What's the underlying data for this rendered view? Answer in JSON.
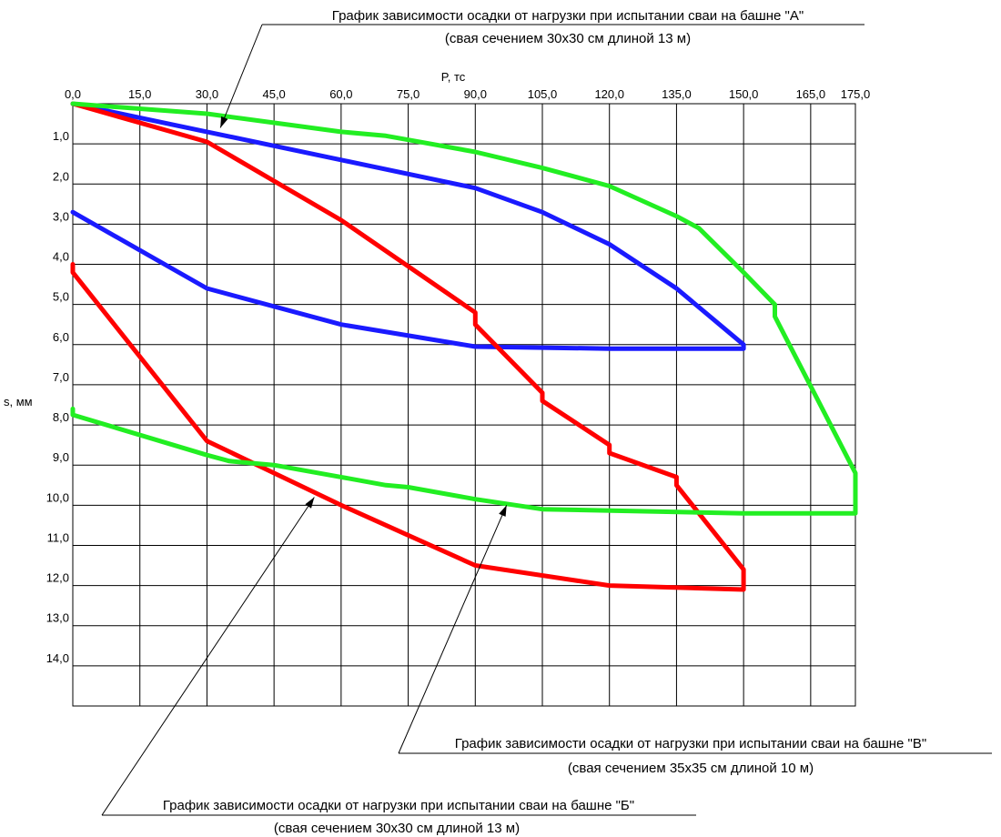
{
  "chart_data": {
    "type": "line",
    "xlabel": "P, тс",
    "ylabel": "s, мм",
    "xlim": [
      0,
      175
    ],
    "ylim": [
      0,
      15
    ],
    "y_inverted": true,
    "grid": true,
    "x_ticks": [
      "0,0",
      "15,0",
      "30,0",
      "45,0",
      "60,0",
      "75,0",
      "90,0",
      "105,0",
      "120,0",
      "135,0",
      "150,0",
      "165,0",
      "175,0"
    ],
    "x_tick_values": [
      0,
      15,
      30,
      45,
      60,
      75,
      90,
      105,
      120,
      135,
      150,
      165,
      175
    ],
    "y_ticks": [
      "1,0",
      "2,0",
      "3,0",
      "4,0",
      "5,0",
      "6,0",
      "7,0",
      "8,0",
      "9,0",
      "10,0",
      "11,0",
      "12,0",
      "13,0",
      "14,0"
    ],
    "y_tick_values": [
      1,
      2,
      3,
      4,
      5,
      6,
      7,
      8,
      9,
      10,
      11,
      12,
      13,
      14
    ],
    "series": [
      {
        "color": "#1a1aff",
        "points": [
          [
            0,
            0
          ],
          [
            30,
            0.7
          ],
          [
            60,
            1.4
          ],
          [
            90,
            2.1
          ],
          [
            105,
            2.7
          ],
          [
            120,
            3.5
          ],
          [
            135,
            4.6
          ],
          [
            150,
            6.0
          ],
          [
            150,
            6.1
          ],
          [
            120,
            6.1
          ],
          [
            90,
            6.05
          ],
          [
            60,
            5.5
          ],
          [
            30,
            4.6
          ],
          [
            0,
            2.7
          ]
        ]
      },
      {
        "color": "#ff0000",
        "points": [
          [
            0,
            0
          ],
          [
            30,
            0.95
          ],
          [
            60,
            2.9
          ],
          [
            90,
            5.2
          ],
          [
            90,
            5.5
          ],
          [
            105,
            7.2
          ],
          [
            105,
            7.4
          ],
          [
            120,
            8.5
          ],
          [
            120,
            8.7
          ],
          [
            135,
            9.3
          ],
          [
            135,
            9.5
          ],
          [
            150,
            11.6
          ],
          [
            150,
            12.1
          ],
          [
            120,
            12.0
          ],
          [
            90,
            11.5
          ],
          [
            60,
            10.0
          ],
          [
            30,
            8.4
          ],
          [
            0,
            4.2
          ],
          [
            0,
            4.0
          ]
        ]
      },
      {
        "color": "#22ee22",
        "points": [
          [
            0,
            0
          ],
          [
            30,
            0.25
          ],
          [
            60,
            0.7
          ],
          [
            70,
            0.8
          ],
          [
            75,
            0.9
          ],
          [
            90,
            1.2
          ],
          [
            105,
            1.6
          ],
          [
            120,
            2.05
          ],
          [
            135,
            2.8
          ],
          [
            140,
            3.1
          ],
          [
            150,
            4.2
          ],
          [
            157,
            5.0
          ],
          [
            157,
            5.3
          ],
          [
            175,
            9.2
          ],
          [
            175,
            10.2
          ],
          [
            165,
            10.2
          ],
          [
            150,
            10.2
          ],
          [
            105,
            10.1
          ],
          [
            90,
            9.85
          ],
          [
            75,
            9.55
          ],
          [
            70,
            9.5
          ],
          [
            60,
            9.3
          ],
          [
            45,
            9.0
          ],
          [
            35,
            8.9
          ],
          [
            30,
            8.75
          ],
          [
            0,
            7.75
          ],
          [
            0,
            7.6
          ]
        ]
      }
    ],
    "annotations": [
      {
        "id": "a",
        "title": "График зависимости осадки от нагрузки при испытании сваи на башне \"А\"",
        "subtitle": "(свая сечением 30х30 см длиной 13 м)",
        "target": [
          33,
          0.6
        ]
      },
      {
        "id": "v",
        "title": "График зависимости осадки от нагрузки при испытании сваи на башне \"В\"",
        "subtitle": "(свая сечением 35х35 см длиной 10 м)",
        "target": [
          97,
          10.0
        ]
      },
      {
        "id": "b",
        "title": "График зависимости осадки от нагрузки при испытании сваи на башне \"Б\"",
        "subtitle": "(свая сечением 30х30 см длиной 13 м)",
        "target": [
          54,
          9.8
        ]
      }
    ]
  }
}
